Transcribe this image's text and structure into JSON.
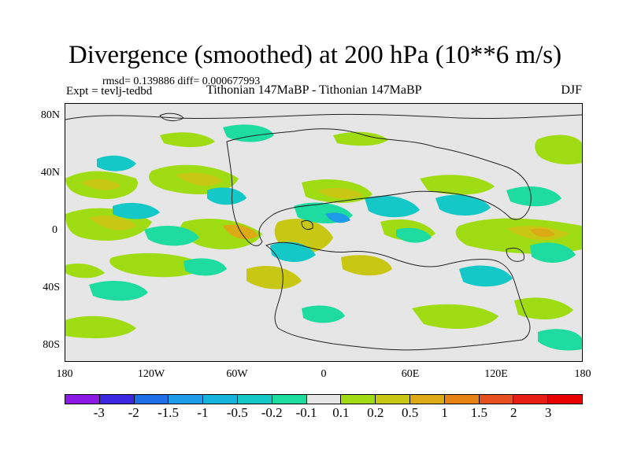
{
  "title": "Divergence (smoothed) at 200 hPa (10**6 m/s)",
  "stats": "rmsd= 0.139886 diff= 0.000677993",
  "experiment": "Expt = tevlj-tedbd",
  "subtitle": "Tithonian 147MaBP - Tithonian 147MaBP",
  "season": "DJF",
  "lat_labels": [
    "80N",
    "40N",
    "0",
    "40S",
    "80S"
  ],
  "lon_labels": [
    "180",
    "120W",
    "60W",
    "0",
    "60E",
    "120E",
    "180"
  ],
  "colorbar": {
    "labels": [
      "-3",
      "-2",
      "-1.5",
      "-1",
      "-0.5",
      "-0.2",
      "-0.1",
      "0.1",
      "0.2",
      "0.5",
      "1",
      "1.5",
      "2",
      "3"
    ],
    "colors": [
      "#8a19e6",
      "#3c28e0",
      "#1e6ee6",
      "#1e9be6",
      "#14b4dc",
      "#14c8c8",
      "#1edca0",
      "#e6e6e6",
      "#a0dc14",
      "#c8c814",
      "#dcaa14",
      "#e68214",
      "#e6501e",
      "#e61e14",
      "#e60000"
    ]
  }
}
